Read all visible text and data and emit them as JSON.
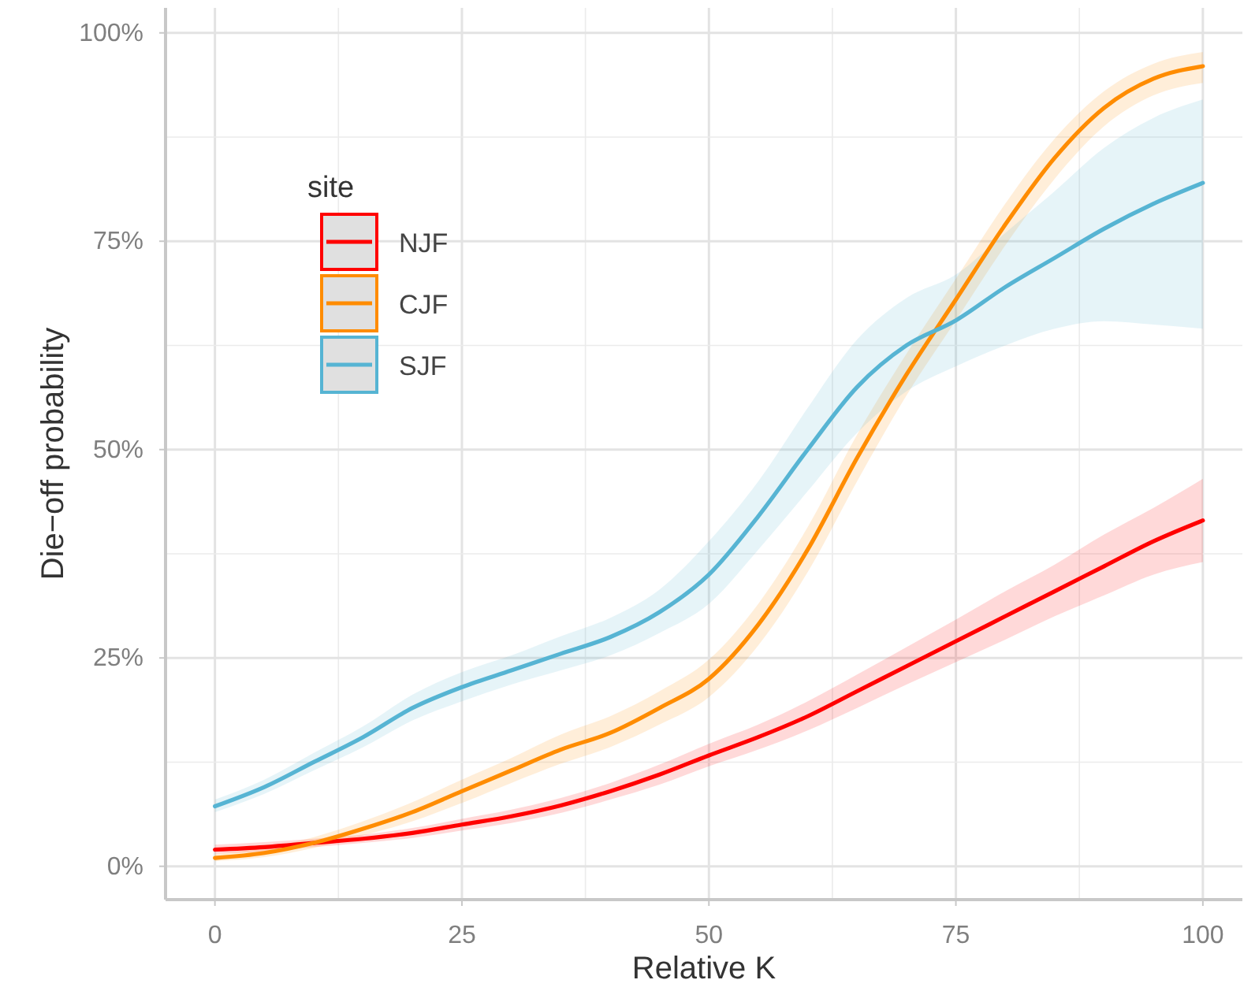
{
  "chart_data": {
    "type": "line",
    "xlabel": "Relative K",
    "ylabel": "Die−off probability",
    "legend_title": "site",
    "legend": "top left",
    "grid": true,
    "x": [
      0,
      5,
      10,
      15,
      20,
      25,
      30,
      35,
      40,
      45,
      50,
      55,
      60,
      65,
      70,
      75,
      80,
      85,
      90,
      95,
      100
    ],
    "xlim": [
      -5,
      104
    ],
    "ylim": [
      -4,
      103
    ],
    "xticks": [
      0,
      25,
      50,
      75,
      100
    ],
    "yticks": [
      {
        "value": 0,
        "label": "0%"
      },
      {
        "value": 25,
        "label": "25%"
      },
      {
        "value": 50,
        "label": "50%"
      },
      {
        "value": 75,
        "label": "75%"
      },
      {
        "value": 100,
        "label": "100%"
      }
    ],
    "series": [
      {
        "name": "NJF",
        "color": "#ff0000",
        "values": [
          2,
          2.3,
          2.8,
          3.3,
          4,
          5,
          6,
          7.3,
          9,
          11,
          13.3,
          15.5,
          18,
          21,
          24,
          27,
          30,
          33,
          36,
          39,
          41.5
        ],
        "lower": [
          1.5,
          1.8,
          2.3,
          2.8,
          3.4,
          4.3,
          5.2,
          6.4,
          8,
          9.8,
          12,
          14,
          16.3,
          19,
          21.8,
          24.5,
          27.2,
          30,
          32.5,
          35,
          36.5
        ],
        "upper": [
          2.6,
          2.9,
          3.3,
          3.8,
          4.6,
          5.7,
          6.8,
          8.2,
          10,
          12.2,
          14.7,
          17,
          19.8,
          23,
          26.3,
          29.6,
          33,
          36.2,
          39.8,
          43,
          46.5
        ]
      },
      {
        "name": "CJF",
        "color": "#ff8c00",
        "values": [
          1,
          1.6,
          2.8,
          4.5,
          6.5,
          9,
          11.5,
          14,
          16,
          19,
          22.5,
          29,
          38,
          49,
          59,
          68,
          77,
          85,
          91,
          94.5,
          96
        ],
        "lower": [
          0.6,
          1.1,
          2.2,
          3.7,
          5.4,
          7.6,
          10,
          12.3,
          14.3,
          17,
          20.3,
          26.5,
          35.3,
          46.2,
          56.5,
          65.5,
          74.5,
          82.5,
          88.8,
          92.5,
          94
        ],
        "upper": [
          1.5,
          2.2,
          3.5,
          5.4,
          7.7,
          10.4,
          13,
          15.8,
          18,
          21,
          24.8,
          31.5,
          40.7,
          51.8,
          61.5,
          70.5,
          79.5,
          87.3,
          93,
          96.3,
          97.7
        ]
      },
      {
        "name": "SJF",
        "color": "#56b4d3",
        "values": [
          7.2,
          9.5,
          12.5,
          15.5,
          19,
          21.5,
          23.5,
          25.5,
          27.5,
          30.5,
          35,
          42,
          50,
          57.5,
          62.5,
          65.5,
          69.5,
          73,
          76.5,
          79.5,
          82
        ],
        "lower": [
          6.5,
          8.7,
          11.5,
          14.3,
          17.5,
          19.8,
          21.8,
          23.5,
          25.3,
          28,
          31.5,
          38,
          45,
          52,
          57,
          60,
          62.5,
          64.5,
          65.4,
          65,
          64.5
        ],
        "upper": [
          8,
          10.4,
          13.6,
          16.8,
          20.6,
          23.3,
          25.3,
          27.6,
          29.8,
          33.2,
          39,
          46.2,
          55,
          63.2,
          68.2,
          71,
          76,
          81,
          86.2,
          89.8,
          92
        ]
      }
    ]
  }
}
